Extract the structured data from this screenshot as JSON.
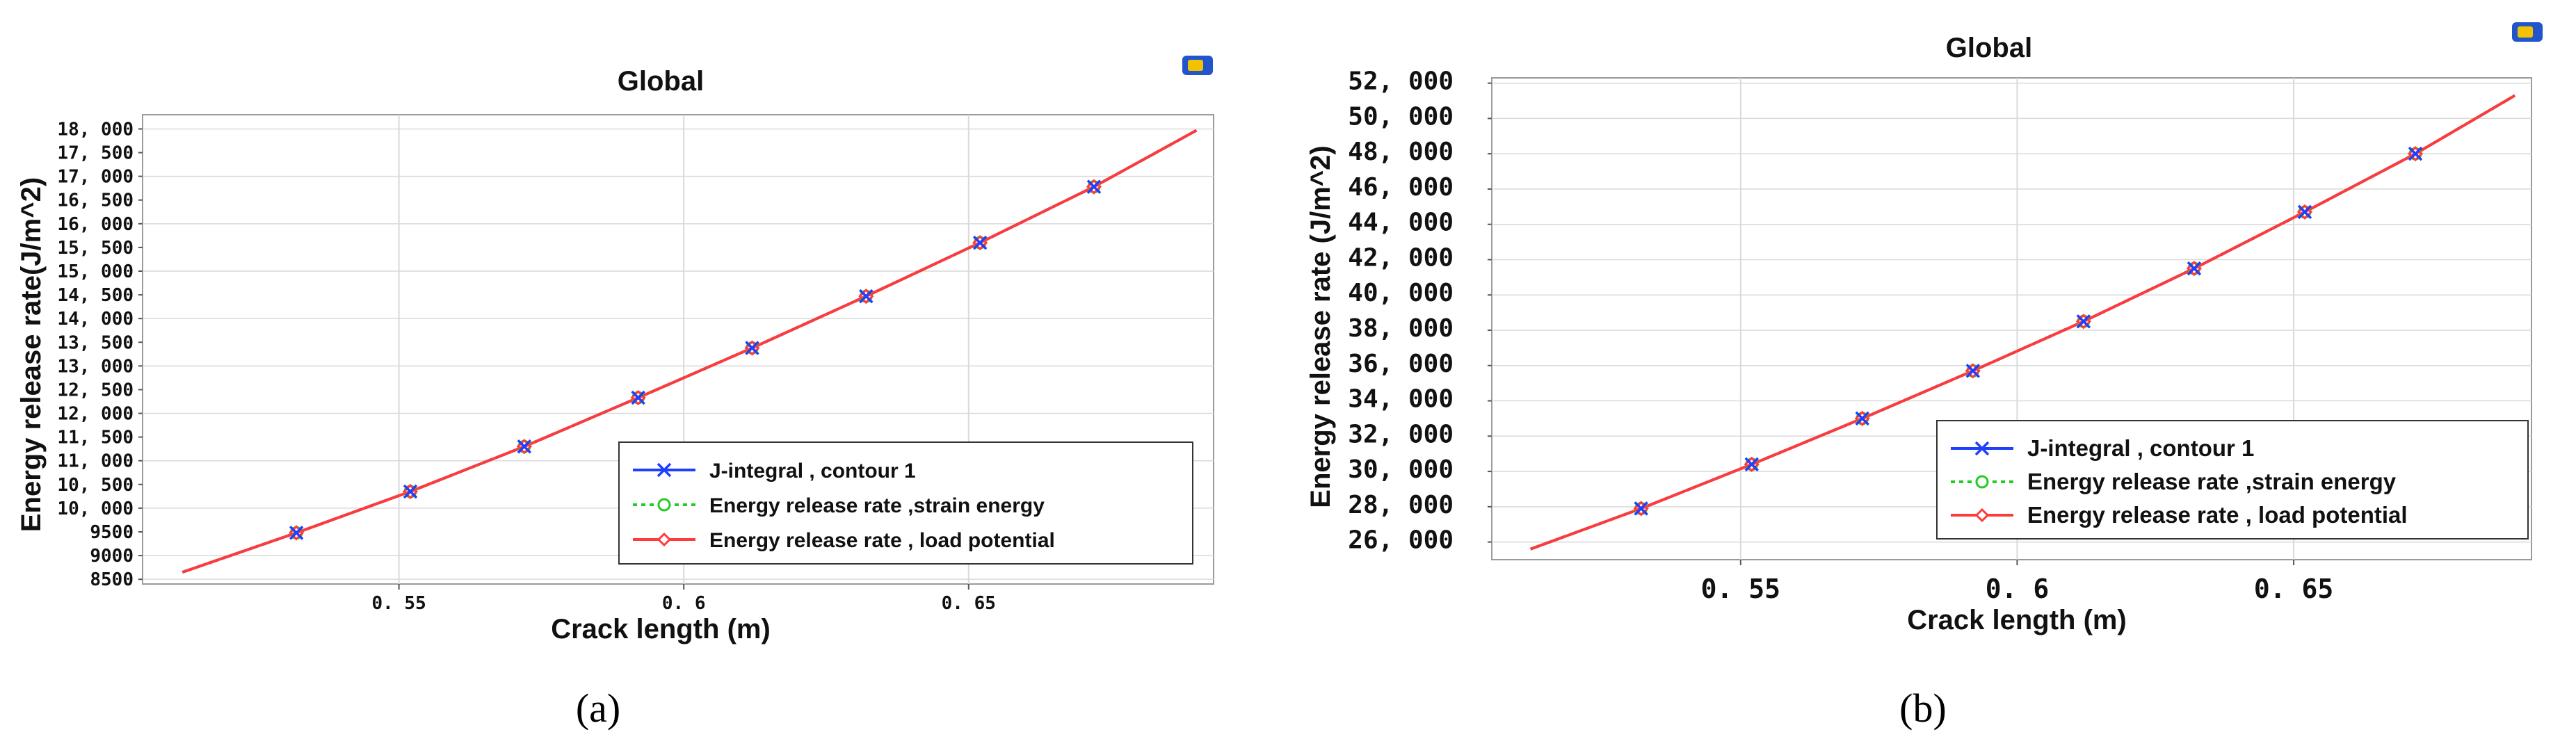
{
  "chart_data": [
    {
      "panel": "(a)",
      "type": "line",
      "title": "Global",
      "xlabel": "Crack length (m)",
      "ylabel": "Energy release rate(J/m^2)",
      "xlim": [
        0.505,
        0.693
      ],
      "ylim": [
        8400,
        18300
      ],
      "x_ticks": [
        0.55,
        0.6,
        0.65
      ],
      "x_tick_labels": [
        "0. 55",
        "0. 6",
        "0. 65"
      ],
      "y_ticks": [
        8500,
        9000,
        10000,
        11000,
        12000,
        13000,
        14000,
        15000,
        16000,
        17000,
        18000
      ],
      "y_tick_labels": [
        "8500",
        "9000",
        "10, 000",
        "11, 000",
        "12, 000",
        "13, 000",
        "14, 000",
        "15, 000",
        "16, 000",
        "17, 000",
        "18, 000"
      ],
      "minor_y_ticks": [
        9500,
        10500,
        11500,
        12500,
        13500,
        14500,
        15500,
        16500,
        17500
      ],
      "minor_y_tick_labels": [
        "9500",
        "10, 500",
        "11, 500",
        "12, 500",
        "13, 500",
        "14, 500",
        "15, 500",
        "16, 500",
        "17, 500"
      ],
      "grid": true,
      "legend_position": "bottom-right",
      "x": [
        0.512,
        0.532,
        0.552,
        0.572,
        0.592,
        0.612,
        0.632,
        0.652,
        0.672,
        0.69
      ],
      "series": [
        {
          "name": "J-integral , contour 1",
          "marker": "x",
          "color": "#1f3fff",
          "values": [
            8650,
            9480,
            10350,
            11300,
            12330,
            13380,
            14470,
            15600,
            16780,
            17970
          ]
        },
        {
          "name": "Energy release rate ,strain energy",
          "marker": "o",
          "color": "#22cc22",
          "values": [
            8650,
            9480,
            10350,
            11300,
            12330,
            13380,
            14470,
            15600,
            16780,
            17970
          ]
        },
        {
          "name": "Energy release rate , load potential",
          "marker": "diamond",
          "color": "#ff3a3a",
          "values": [
            8650,
            9480,
            10350,
            11300,
            12330,
            13380,
            14470,
            15600,
            16780,
            17970
          ]
        }
      ],
      "marker_x": [
        0.532,
        0.552,
        0.572,
        0.592,
        0.612,
        0.632,
        0.652,
        0.672
      ]
    },
    {
      "panel": "(b)",
      "type": "line",
      "title": "Global",
      "xlabel": "Crack length (m)",
      "ylabel": "Energy release rate (J/m^2)",
      "xlim": [
        0.505,
        0.693
      ],
      "ylim": [
        25000,
        52300
      ],
      "x_ticks": [
        0.55,
        0.6,
        0.65
      ],
      "x_tick_labels": [
        "0. 55",
        "0. 6",
        "0. 65"
      ],
      "y_ticks": [
        26000,
        28000,
        30000,
        32000,
        34000,
        36000,
        38000,
        40000,
        42000,
        44000,
        46000,
        48000,
        50000,
        52000
      ],
      "y_tick_labels": [
        "26, 000",
        "28, 000",
        "30, 000",
        "32, 000",
        "34, 000",
        "36, 000",
        "38, 000",
        "40, 000",
        "42, 000",
        "44, 000",
        "46, 000",
        "48, 000",
        "50, 000",
        "52, 000"
      ],
      "grid": true,
      "legend_position": "bottom-right",
      "x": [
        0.512,
        0.532,
        0.552,
        0.572,
        0.592,
        0.612,
        0.632,
        0.652,
        0.672,
        0.69
      ],
      "series": [
        {
          "name": "J-integral , contour 1",
          "marker": "x",
          "color": "#1f3fff",
          "values": [
            25600,
            27900,
            30400,
            33000,
            35700,
            38500,
            41500,
            44700,
            48000,
            51300
          ]
        },
        {
          "name": "Energy release rate ,strain energy",
          "marker": "o",
          "color": "#22cc22",
          "values": [
            25600,
            27900,
            30400,
            33000,
            35700,
            38500,
            41500,
            44700,
            48000,
            51300
          ]
        },
        {
          "name": "Energy release rate , load potential",
          "marker": "diamond",
          "color": "#ff3a3a",
          "values": [
            25600,
            27900,
            30400,
            33000,
            35700,
            38500,
            41500,
            44700,
            48000,
            51300
          ]
        }
      ],
      "marker_x": [
        0.532,
        0.552,
        0.572,
        0.592,
        0.612,
        0.632,
        0.652,
        0.672
      ]
    }
  ],
  "panel_labels": {
    "a": "(a)",
    "b": "(b)"
  },
  "colors": {
    "grid": "#d9d9d9",
    "frame": "#9a9a9a",
    "icon_blue": "#2255cc",
    "icon_yellow": "#f2c200"
  },
  "icons": [
    "export-icon",
    "export-icon"
  ]
}
